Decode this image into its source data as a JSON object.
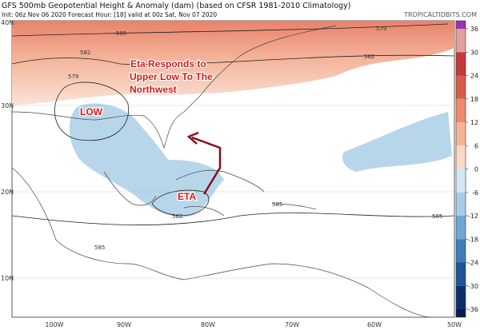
{
  "header": {
    "title": "GFS 500mb Geopotential Height & Anomaly (dam) (based on CFSR 1981-2010 Climatology)",
    "subtitle": "Init: 06z Nov 06 2020   Forecast Hour: [18]   valid at 00z Sat, Nov 07 2020",
    "source": "TROPICALTIDBITS.COM"
  },
  "map": {
    "lat_labels": [
      "40N",
      "30N",
      "20N",
      "10N"
    ],
    "lon_labels": [
      "100W",
      "90W",
      "80W",
      "70W",
      "60W",
      "50W"
    ],
    "contour_labels": [
      "585",
      "579",
      "582",
      "579",
      "582",
      "585",
      "585",
      "582",
      "585"
    ],
    "annotation_lines": [
      "Eta Responds to",
      "Upper Low To The",
      "Northwest"
    ],
    "low_label": "LOW",
    "storm_label": "ETA"
  },
  "colorbar": {
    "labels": [
      "36",
      "30",
      "24",
      "18",
      "12",
      "6",
      "0",
      "-6",
      "-12",
      "-18",
      "-24",
      "-30",
      "-36"
    ],
    "colors": [
      "#e0a0a0",
      "#c43a3a",
      "#d85c4a",
      "#ec8a6c",
      "#f6b496",
      "#fbd8c4",
      "#ffffff",
      "#d4e8f4",
      "#a8cce6",
      "#70a6d2",
      "#3e7db8",
      "#1d5598",
      "#0c2e6e"
    ]
  }
}
